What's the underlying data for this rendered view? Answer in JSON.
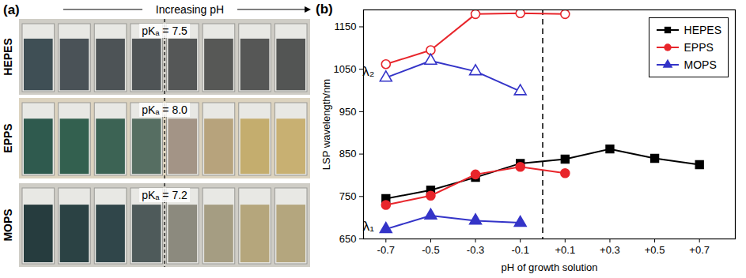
{
  "chart_data": {
    "type": "line",
    "panel_label": "(b)",
    "x_label": "pH of growth solution",
    "y_label": "LSP wavelength/nm",
    "x": [
      -0.7,
      -0.5,
      -0.3,
      -0.1,
      0.1,
      0.3,
      0.5,
      0.7
    ],
    "xlim": [
      -0.8,
      0.86
    ],
    "xticks": [
      {
        "value": -0.7,
        "label": "-0.7"
      },
      {
        "value": -0.5,
        "label": "-0.5"
      },
      {
        "value": -0.3,
        "label": "-0.3"
      },
      {
        "value": -0.1,
        "label": "-0.1"
      },
      {
        "value": 0.1,
        "label": "+0.1"
      },
      {
        "value": 0.3,
        "label": "+0.3"
      },
      {
        "value": 0.5,
        "label": "+0.5"
      },
      {
        "value": 0.7,
        "label": "+0.7"
      }
    ],
    "ylim": [
      650,
      1190
    ],
    "yticks": [
      650,
      750,
      850,
      950,
      1050,
      1150
    ],
    "dashed_line_x": 0,
    "legend": "top-right",
    "series": [
      {
        "name": "HEPES",
        "color": "#000000",
        "marker": "square",
        "lambda1": [
          745,
          765,
          795,
          828,
          838,
          862,
          840,
          825
        ]
      },
      {
        "name": "EPPS",
        "color": "#e8252b",
        "marker": "circle",
        "lambda1": [
          730,
          752,
          802,
          820,
          805,
          null,
          null,
          null
        ],
        "lambda2": [
          1062,
          1095,
          1180,
          1182,
          1180,
          null,
          null,
          null
        ]
      },
      {
        "name": "MOPS",
        "color": "#3434c8",
        "marker": "triangle",
        "lambda1": [
          673,
          705,
          693,
          688,
          null,
          null,
          null,
          null
        ],
        "lambda2": [
          1030,
          1070,
          1045,
          998,
          null,
          null,
          null,
          null
        ]
      }
    ],
    "annotations": [
      {
        "text": "λ₂",
        "x": -0.7,
        "y": 1045
      },
      {
        "text": "λ₁",
        "x": -0.7,
        "y": 680
      }
    ]
  },
  "panel_a": {
    "panel_label": "(a)",
    "header": "Increasing pH",
    "rows": [
      {
        "name": "HEPES",
        "pka": "pKₐ = 7.5",
        "colors": [
          "#3f4f55",
          "#4a5257",
          "#4d5356",
          "#4f5456",
          "#555757",
          "#575856",
          "#565756",
          "#535554"
        ]
      },
      {
        "name": "EPPS",
        "pka": "pKₐ = 8.0",
        "colors": [
          "#2f5a4e",
          "#33604f",
          "#3c6354",
          "#566e62",
          "#a39486",
          "#b7a37c",
          "#c4ad6e",
          "#c8b072"
        ]
      },
      {
        "name": "MOPS",
        "pka": "pKₐ = 7.2",
        "colors": [
          "#263c3e",
          "#2b4244",
          "#30464a",
          "#4e5a5a",
          "#8c8a7e",
          "#a59d82",
          "#b5a67c",
          "#b4a67e"
        ]
      }
    ]
  }
}
